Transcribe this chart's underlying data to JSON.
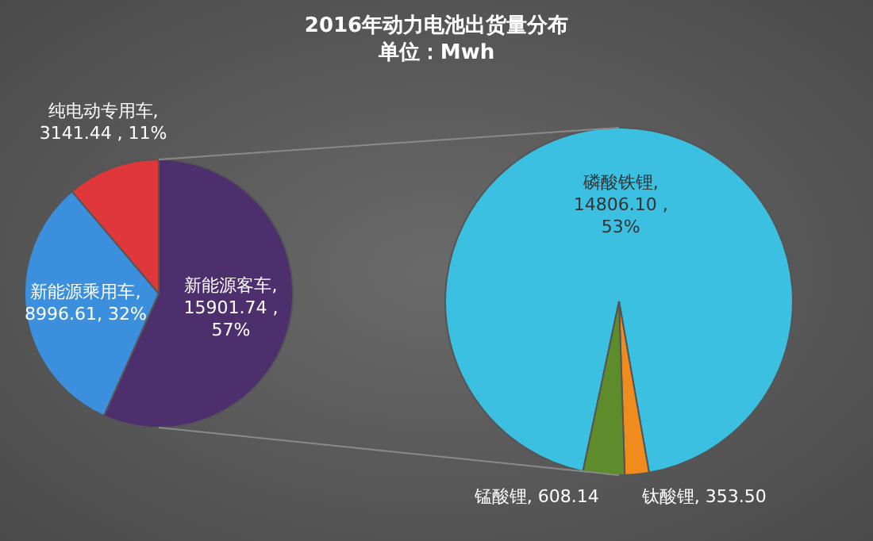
{
  "chart_data": [
    {
      "type": "pie",
      "title": "2016年动力电池出货量分布",
      "subtitle": "单位：Mwh",
      "categories": [
        "新能源客车",
        "新能源乘用车",
        "纯电动专用车"
      ],
      "values": [
        15901.74,
        8996.61,
        3141.44
      ],
      "colors": [
        "#4d2f6e",
        "#3c8fdc",
        "#e0383a"
      ],
      "value_labels": [
        ", 15901.74 , 57%",
        ", 8996.61, 32%",
        ", 3141.44 , 11%"
      ]
    },
    {
      "type": "pie",
      "categories": [
        "磷酸铁锂",
        "钛酸锂",
        "锰酸锂"
      ],
      "values": [
        14806.1,
        353.5,
        608.14
      ],
      "colors": [
        "#3cc0e2",
        "#f08c1e",
        "#5e8c2a"
      ],
      "value_labels": [
        ", 14806.10 , 53%",
        ", 353.50",
        ", 608.14"
      ]
    }
  ]
}
